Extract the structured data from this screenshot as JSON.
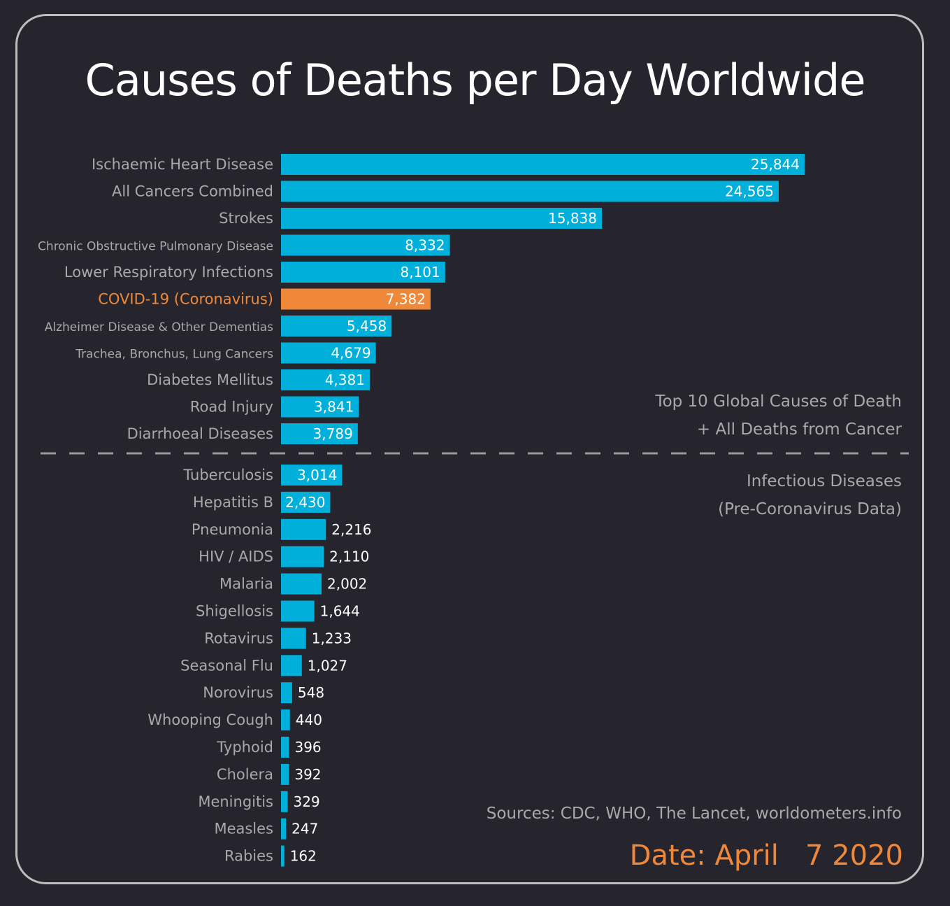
{
  "chart_data": {
    "type": "bar",
    "orientation": "horizontal",
    "title": "Causes of Deaths per Day Worldwide",
    "groups": [
      {
        "label_lines": [
          "Top 10 Global Causes of Death",
          "+ All Deaths from Cancer"
        ],
        "categories": [
          "Ischaemic Heart Disease",
          "All Cancers Combined",
          "Strokes",
          "Chronic Obstructive Pulmonary Disease",
          "Lower Respiratory Infections",
          "COVID-19  (Coronavirus)",
          "Alzheimer Disease & Other Dementias",
          "Trachea, Bronchus, Lung Cancers",
          "Diabetes Mellitus",
          "Road Injury",
          "Diarrhoeal Diseases"
        ],
        "values": [
          25844,
          24565,
          15838,
          8332,
          8101,
          7382,
          5458,
          4679,
          4381,
          3841,
          3789
        ],
        "value_labels": [
          "25,844",
          "24,565",
          "15,838",
          "8,332",
          "8,101",
          "7,382",
          "5,458",
          "4,679",
          "4,381",
          "3,841",
          "3,789"
        ]
      },
      {
        "label_lines": [
          "Infectious Diseases",
          "(Pre-Coronavirus Data)"
        ],
        "categories": [
          "Tuberculosis",
          "Hepatitis B",
          "Pneumonia",
          "HIV / AIDS",
          "Malaria",
          "Shigellosis",
          "Rotavirus",
          "Seasonal Flu",
          "Norovirus",
          "Whooping Cough",
          "Typhoid",
          "Cholera",
          "Meningitis",
          "Measles",
          "Rabies"
        ],
        "values": [
          3014,
          2430,
          2216,
          2110,
          2002,
          1644,
          1233,
          1027,
          548,
          440,
          396,
          392,
          329,
          247,
          162
        ],
        "value_labels": [
          "3,014",
          "2,430",
          "2,216",
          "2,110",
          "2,002",
          "1,644",
          "1,233",
          "1,027",
          "548",
          "440",
          "396",
          "392",
          "329",
          "247",
          "162"
        ]
      }
    ],
    "highlight_category": "COVID-19  (Coronavirus)",
    "xlim": [
      0,
      25844
    ]
  },
  "sources": "Sources: CDC, WHO, The Lancet, worldometers.info",
  "date_label": "Date: April   7 2020",
  "colors": {
    "background": "#26242c",
    "bar": "#00b0da",
    "highlight": "#f0883a",
    "label_text": "#a9a9a9",
    "value_text": "#ffffff",
    "divider": "#9a9a9a"
  }
}
